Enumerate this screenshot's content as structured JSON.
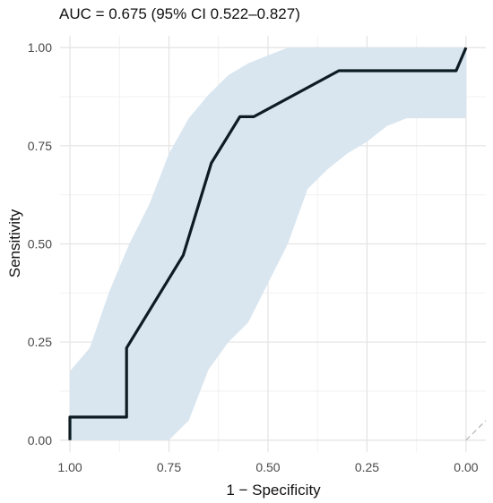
{
  "chart_data": {
    "type": "line",
    "title": "AUC = 0.675 (95% CI 0.522–0.827)",
    "xlabel": "1 − Specificity",
    "ylabel": "Sensitivity",
    "x_reversed": true,
    "xlim": [
      1.025,
      -0.05
    ],
    "ylim": [
      -0.03,
      1.03
    ],
    "x_ticks": [
      1.0,
      0.75,
      0.5,
      0.25,
      0.0
    ],
    "x_tick_labels": [
      "1.00",
      "0.75",
      "0.50",
      "0.25",
      "0.00"
    ],
    "y_ticks": [
      0.0,
      0.25,
      0.5,
      0.75,
      1.0
    ],
    "y_tick_labels": [
      "0.00",
      "0.25",
      "0.50",
      "0.75",
      "1.00"
    ],
    "grid": true,
    "series": [
      {
        "role": "roc_curve",
        "color": "#0d1b22",
        "x": [
          1.0,
          1.0,
          0.857,
          0.857,
          0.714,
          0.643,
          0.571,
          0.536,
          0.321,
          0.025,
          0.0
        ],
        "y": [
          0.0,
          0.059,
          0.059,
          0.235,
          0.471,
          0.706,
          0.824,
          0.824,
          0.941,
          0.941,
          1.0
        ]
      },
      {
        "role": "confidence_band",
        "color": "#d9e6f0",
        "x": [
          1.0,
          0.95,
          0.9,
          0.85,
          0.8,
          0.75,
          0.7,
          0.65,
          0.6,
          0.55,
          0.5,
          0.45,
          0.4,
          0.35,
          0.3,
          0.25,
          0.2,
          0.15,
          0.1,
          0.05,
          0.025,
          0.0
        ],
        "upper": [
          0.176,
          0.235,
          0.38,
          0.5,
          0.6,
          0.73,
          0.82,
          0.88,
          0.93,
          0.96,
          0.98,
          1.0,
          1.0,
          1.0,
          1.0,
          1.0,
          1.0,
          1.0,
          1.0,
          1.0,
          1.0,
          1.0
        ],
        "lower": [
          0.0,
          0.0,
          0.0,
          0.0,
          0.0,
          0.0,
          0.05,
          0.18,
          0.25,
          0.3,
          0.4,
          0.5,
          0.64,
          0.69,
          0.73,
          0.76,
          0.8,
          0.82,
          0.82,
          0.82,
          0.82,
          0.82
        ]
      },
      {
        "role": "chance_diagonal",
        "color": "#b8b8b8",
        "x": [
          0.0,
          -0.05
        ],
        "y": [
          0.0,
          0.05
        ]
      }
    ]
  }
}
